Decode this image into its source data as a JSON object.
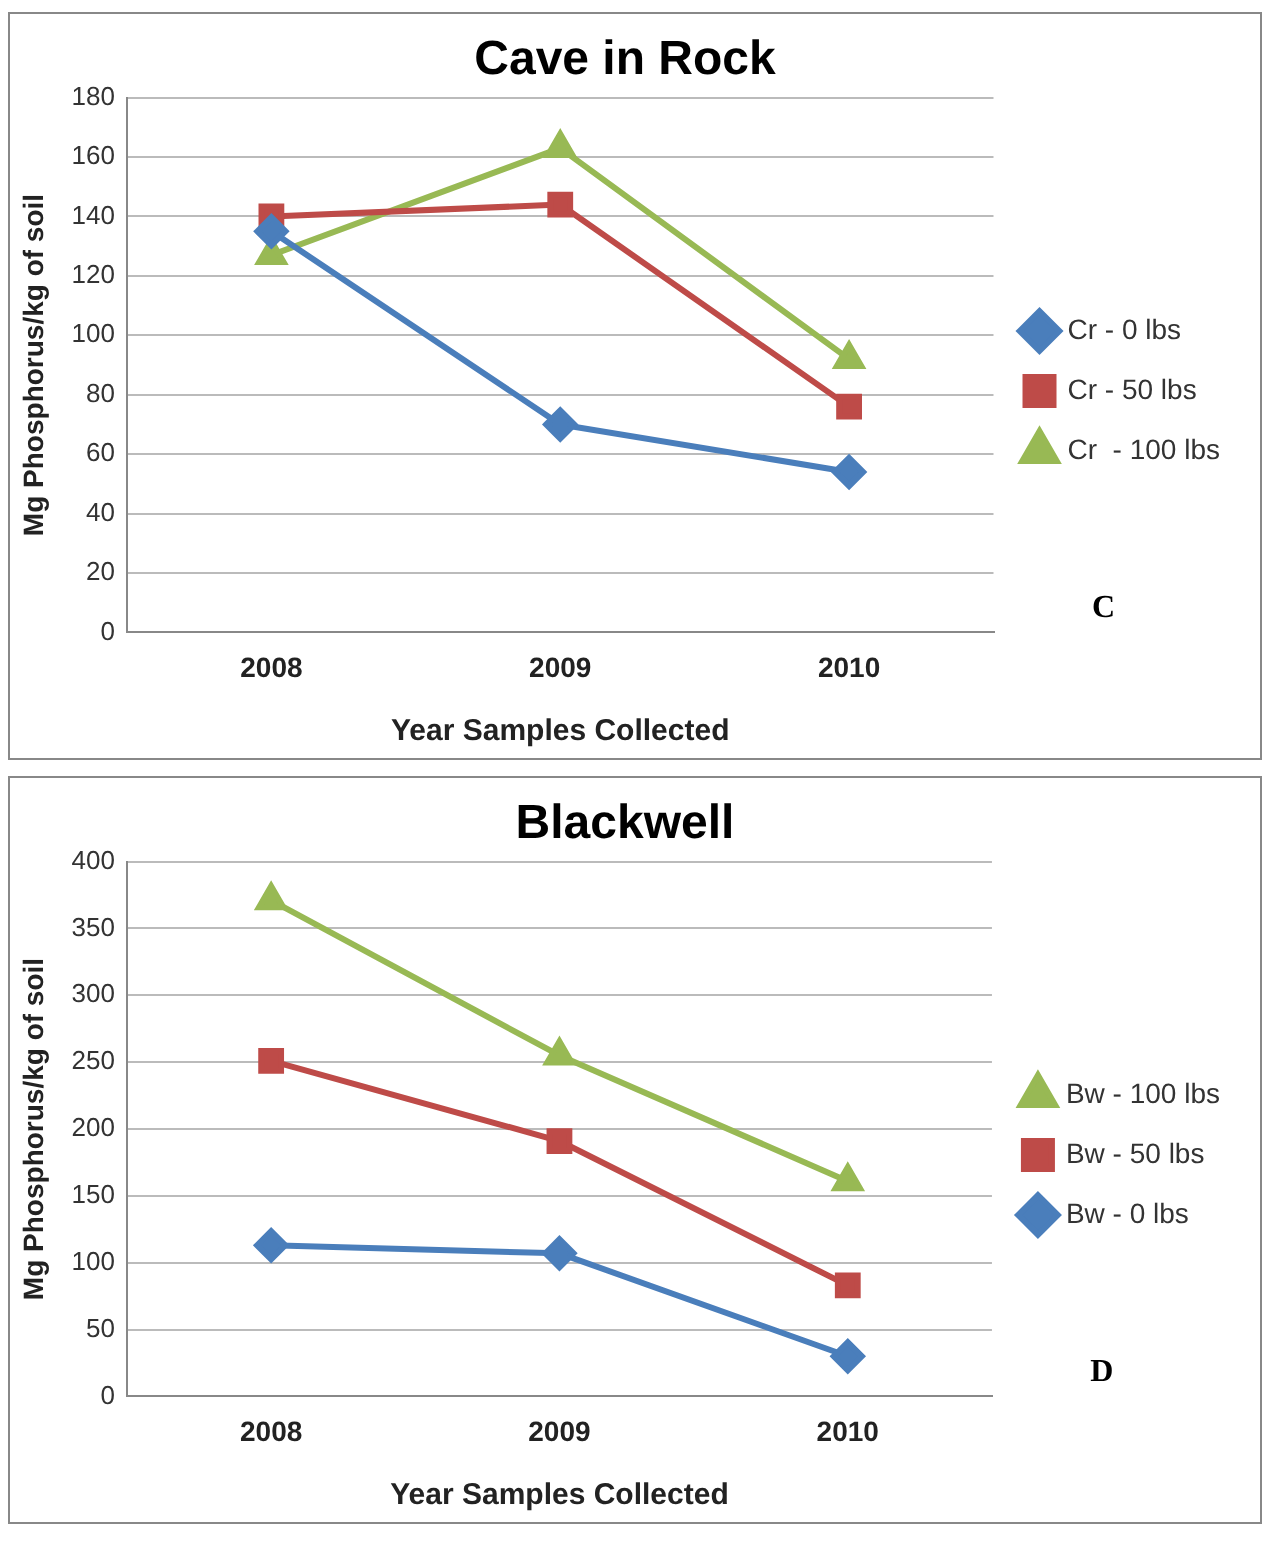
{
  "chart_data": [
    {
      "type": "line",
      "title": "Cave in Rock",
      "xlabel": "Year Samples Collected",
      "ylabel": "Mg Phosphorus/kg of soil",
      "categories": [
        "2008",
        "2009",
        "2010"
      ],
      "ylim": [
        0,
        180
      ],
      "yticks": [
        0,
        20,
        40,
        60,
        80,
        100,
        120,
        140,
        160,
        180
      ],
      "grid": "y",
      "legend": "right",
      "annotations": [
        "C"
      ],
      "series": [
        {
          "name": "Cr - 0 lbs",
          "color": "#4a7ebb",
          "marker": "diamond",
          "values": [
            135,
            70,
            54
          ]
        },
        {
          "name": "Cr - 50 lbs",
          "color": "#be4b48",
          "marker": "square",
          "values": [
            140,
            144,
            76
          ]
        },
        {
          "name": "Cr  - 100 lbs",
          "color": "#98b954",
          "marker": "triangle",
          "values": [
            127,
            163,
            92
          ]
        }
      ]
    },
    {
      "type": "line",
      "title": "Blackwell",
      "xlabel": "Year Samples Collected",
      "ylabel": "Mg Phosphorus/kg of soil",
      "categories": [
        "2008",
        "2009",
        "2010"
      ],
      "ylim": [
        0,
        400
      ],
      "yticks": [
        0,
        50,
        100,
        150,
        200,
        250,
        300,
        350,
        400
      ],
      "grid": "y",
      "legend": "right",
      "annotations": [
        "D"
      ],
      "series": [
        {
          "name": "Bw - 100 lbs",
          "color": "#98b954",
          "marker": "triangle",
          "values": [
            371,
            255,
            161
          ]
        },
        {
          "name": "Bw - 50 lbs",
          "color": "#be4b48",
          "marker": "square",
          "values": [
            251,
            191,
            83
          ]
        },
        {
          "name": "Bw - 0 lbs",
          "color": "#4a7ebb",
          "marker": "diamond",
          "values": [
            113,
            107,
            30
          ]
        }
      ]
    }
  ]
}
